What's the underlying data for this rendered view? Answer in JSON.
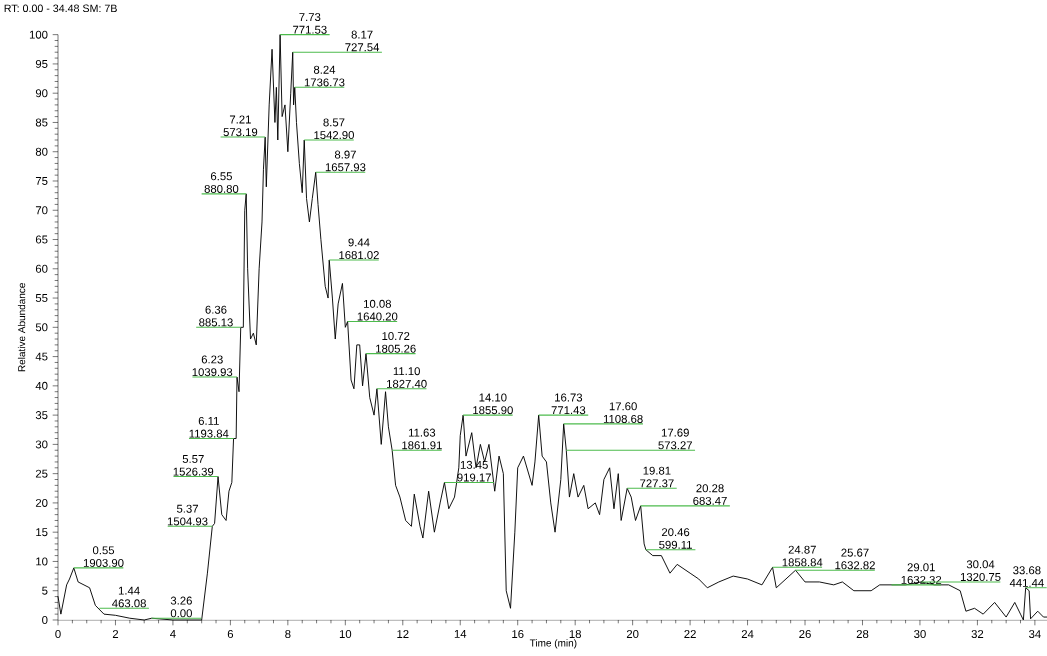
{
  "chart_data": {
    "type": "line",
    "xlabel": "Time (min)",
    "ylabel": "Relative Abundance",
    "color": "#000000",
    "xlim": [
      0,
      34.48
    ],
    "ylim": [
      0,
      100
    ],
    "xticks": [
      0,
      2,
      4,
      6,
      8,
      10,
      12,
      14,
      16,
      18,
      20,
      22,
      24,
      26,
      28,
      30,
      32,
      34
    ],
    "yticks": [
      0,
      5,
      10,
      15,
      20,
      25,
      30,
      35,
      40,
      45,
      50,
      55,
      60,
      65,
      70,
      75,
      80,
      85,
      90,
      95,
      100
    ],
    "x": [
      0,
      0.1,
      0.3,
      0.4,
      0.55,
      0.7,
      0.9,
      1.1,
      1.3,
      1.6,
      2.0,
      2.5,
      3.0,
      3.26,
      4.0,
      5.0,
      5.2,
      5.37,
      5.45,
      5.57,
      5.7,
      5.85,
      5.95,
      6.05,
      6.11,
      6.2,
      6.23,
      6.3,
      6.36,
      6.45,
      6.5,
      6.55,
      6.6,
      6.7,
      6.8,
      6.9,
      7.0,
      7.1,
      7.15,
      7.21,
      7.25,
      7.35,
      7.45,
      7.55,
      7.6,
      7.65,
      7.73,
      7.8,
      7.9,
      8.0,
      8.1,
      8.17,
      8.2,
      8.24,
      8.3,
      8.4,
      8.5,
      8.57,
      8.65,
      8.75,
      8.85,
      8.97,
      9.05,
      9.15,
      9.3,
      9.4,
      9.44,
      9.55,
      9.65,
      9.75,
      9.9,
      10.0,
      10.08,
      10.2,
      10.3,
      10.4,
      10.5,
      10.6,
      10.72,
      10.85,
      11.0,
      11.1,
      11.25,
      11.4,
      11.5,
      11.63,
      11.75,
      11.9,
      12.1,
      12.3,
      12.4,
      12.6,
      12.7,
      12.9,
      13.1,
      13.3,
      13.45,
      13.6,
      13.8,
      13.95,
      14.0,
      14.1,
      14.2,
      14.4,
      14.55,
      14.7,
      14.85,
      15.0,
      15.2,
      15.35,
      15.5,
      15.6,
      15.75,
      15.9,
      16.0,
      16.2,
      16.5,
      16.6,
      16.73,
      16.85,
      17.0,
      17.15,
      17.3,
      17.5,
      17.6,
      17.69,
      17.8,
      17.95,
      18.1,
      18.3,
      18.45,
      18.7,
      18.85,
      19.0,
      19.2,
      19.35,
      19.5,
      19.6,
      19.81,
      19.95,
      20.1,
      20.28,
      20.4,
      20.46,
      20.7,
      21.0,
      21.3,
      21.55,
      22.0,
      22.3,
      22.6,
      23.0,
      23.5,
      24.0,
      24.5,
      24.87,
      25.0,
      25.67,
      26.0,
      26.5,
      27.0,
      27.3,
      27.7,
      28.3,
      28.6,
      29.01,
      29.5,
      30.04,
      30.5,
      31.0,
      31.4,
      31.6,
      31.9,
      32.2,
      32.6,
      33.0,
      33.3,
      33.5,
      33.6,
      33.68,
      33.8,
      33.85,
      34.1,
      34.3,
      34.48
    ],
    "values": [
      4,
      1,
      6,
      7,
      8.9,
      6.5,
      6,
      5.5,
      2.5,
      1,
      0.8,
      0.3,
      0,
      0.3,
      0,
      0,
      8,
      16,
      16.5,
      24.5,
      18,
      17,
      22,
      23.5,
      31,
      31,
      41.5,
      39,
      50,
      50,
      70,
      72.8,
      60,
      48,
      49,
      47,
      60,
      68,
      77,
      82.5,
      74,
      88,
      97.5,
      85,
      91,
      82,
      100,
      86,
      88,
      80,
      90,
      97,
      88,
      91,
      85,
      78,
      73,
      82,
      72,
      68,
      72,
      76.5,
      71,
      65,
      57,
      55,
      61.5,
      55,
      48,
      54,
      57.5,
      50,
      51,
      41,
      39.5,
      47,
      47,
      40,
      45.5,
      38,
      35,
      39.5,
      30,
      39,
      33,
      29,
      23,
      21,
      17,
      16,
      21.5,
      16,
      14,
      22,
      15,
      20,
      23.5,
      19,
      21,
      26,
      31.5,
      35,
      28,
      32,
      26,
      30,
      27,
      30,
      22,
      28,
      25,
      5,
      2,
      15,
      26,
      28,
      23,
      27,
      35,
      28,
      27,
      20,
      15,
      24,
      33.5,
      29,
      21,
      25,
      21,
      23,
      19,
      20,
      18,
      24,
      26,
      19,
      25,
      17,
      22.5,
      21,
      17,
      19.5,
      13,
      12,
      11,
      11,
      8,
      9.5,
      8,
      7,
      5.5,
      6.5,
      7.5,
      7,
      6,
      9,
      5.5,
      8.5,
      6.5,
      6.5,
      6,
      6.5,
      5,
      5,
      6,
      6,
      6,
      6.5,
      6,
      6,
      5,
      1.5,
      2,
      1,
      3,
      0.5,
      3,
      1,
      0,
      5.5,
      5,
      0.2,
      1.5,
      0.5,
      0.5
    ],
    "annotations": [
      "RT: 0.00 - 34.48 SM: 7B",
      {
        "text": "0.55 1903.90",
        "x": 0.55,
        "y": 8.9
      },
      {
        "text": "1.44 463.08",
        "x": 1.44,
        "y": 2
      },
      {
        "text": "3.26 0.00",
        "x": 3.26,
        "y": 0.3
      },
      {
        "text": "5.37 1504.93",
        "x": 5.37,
        "y": 16
      },
      {
        "text": "5.57 1526.39",
        "x": 5.57,
        "y": 24.5
      },
      {
        "text": "6.11 1193.84",
        "x": 6.11,
        "y": 31
      },
      {
        "text": "6.23 1039.93",
        "x": 6.23,
        "y": 41.5
      },
      {
        "text": "6.36 885.13",
        "x": 6.36,
        "y": 50
      },
      {
        "text": "6.55 880.80",
        "x": 6.55,
        "y": 72.8
      },
      {
        "text": "7.21 573.19",
        "x": 7.21,
        "y": 82.5
      },
      {
        "text": "7.73 771.53",
        "x": 7.73,
        "y": 100
      },
      {
        "text": "8.17 727.54",
        "x": 8.17,
        "y": 97
      },
      {
        "text": "8.24 1736.73",
        "x": 8.24,
        "y": 91
      },
      {
        "text": "8.57 1542.90",
        "x": 8.57,
        "y": 82
      },
      {
        "text": "8.97 1657.93",
        "x": 8.97,
        "y": 76.5
      },
      {
        "text": "9.44 1681.02",
        "x": 9.44,
        "y": 61.5
      },
      {
        "text": "10.08 1640.20",
        "x": 10.08,
        "y": 51
      },
      {
        "text": "10.72 1805.26",
        "x": 10.72,
        "y": 45.5
      },
      {
        "text": "11.10 1827.40",
        "x": 11.1,
        "y": 39.5
      },
      {
        "text": "11.63 1861.91",
        "x": 11.63,
        "y": 29
      },
      {
        "text": "13.45 919.17",
        "x": 13.45,
        "y": 23.5
      },
      {
        "text": "14.10 1855.90",
        "x": 14.1,
        "y": 35
      },
      {
        "text": "16.73 771.43",
        "x": 16.73,
        "y": 35
      },
      {
        "text": "17.60 1108.68",
        "x": 17.6,
        "y": 33.5
      },
      {
        "text": "17.69 573.27",
        "x": 17.69,
        "y": 29
      },
      {
        "text": "19.81 727.37",
        "x": 19.81,
        "y": 22.5
      },
      {
        "text": "20.28 683.47",
        "x": 20.28,
        "y": 19.5
      },
      {
        "text": "20.46 599.11",
        "x": 20.46,
        "y": 12
      },
      {
        "text": "24.87 1858.84",
        "x": 24.87,
        "y": 9
      },
      {
        "text": "25.67 1632.82",
        "x": 25.67,
        "y": 8.5
      },
      {
        "text": "29.01 1632.32",
        "x": 29.01,
        "y": 6
      },
      {
        "text": "30.04 1320.75",
        "x": 30.04,
        "y": 6.5
      },
      {
        "text": "33.68 441.44",
        "x": 33.68,
        "y": 5.5
      }
    ]
  }
}
